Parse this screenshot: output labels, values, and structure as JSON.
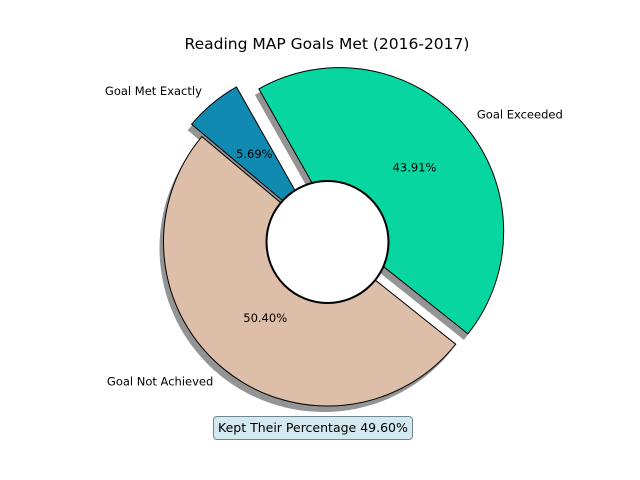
{
  "chart_data": {
    "type": "pie",
    "title": "Reading MAP Goals Met (2016-2017)",
    "donut": true,
    "start_angle_deg": 140,
    "direction": "counterclockwise",
    "shadow": true,
    "slices": [
      {
        "label": "Goal Not Achieved",
        "value": 50.4,
        "pct_label": "50.40%",
        "color": "#ddbea8",
        "explode": false
      },
      {
        "label": "Goal Exceeded",
        "value": 43.91,
        "pct_label": "43.91%",
        "color": "#07d6a0",
        "explode": true
      },
      {
        "label": "Goal Met Exactly",
        "value": 5.69,
        "pct_label": "5.69%",
        "color": "#118ab2",
        "explode": true
      }
    ],
    "annotation": "Kept Their Percentage 49.60%"
  }
}
